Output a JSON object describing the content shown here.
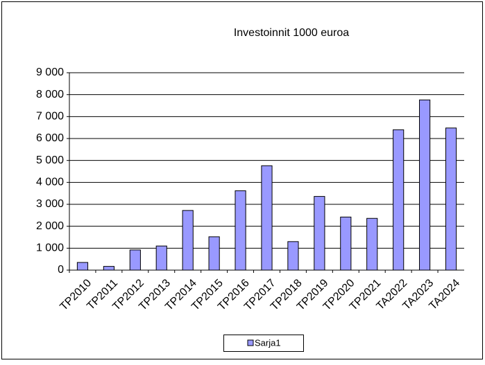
{
  "chart_data": {
    "type": "bar",
    "title": "Investoinnit 1000 euroa",
    "categories": [
      "TP2010",
      "TP2011",
      "TP2012",
      "TP2013",
      "TP2014",
      "TP2015",
      "TP2016",
      "TP2017",
      "TP2018",
      "TP2019",
      "TP2020",
      "TP2021",
      "TA2022",
      "TA2023",
      "TA2024"
    ],
    "series": [
      {
        "name": "Sarja1",
        "color": "#9999ff",
        "values": [
          350,
          170,
          920,
          1100,
          2720,
          1520,
          3620,
          4760,
          1300,
          3360,
          2420,
          2360,
          6400,
          7760,
          6480
        ]
      }
    ],
    "ylim": [
      0,
      9000
    ],
    "yticks": [
      0,
      {
        "value": 1000,
        "label": "1 000"
      },
      {
        "value": 2000,
        "label": "2 000"
      },
      {
        "value": 3000,
        "label": "3 000"
      },
      {
        "value": 4000,
        "label": "4 000"
      },
      {
        "value": 5000,
        "label": "5 000"
      },
      {
        "value": 6000,
        "label": "6 000"
      },
      {
        "value": 7000,
        "label": "7 000"
      },
      {
        "value": 8000,
        "label": "8 000"
      },
      {
        "value": 9000,
        "label": "9 000"
      }
    ],
    "grid": true,
    "legend": "bottom"
  }
}
